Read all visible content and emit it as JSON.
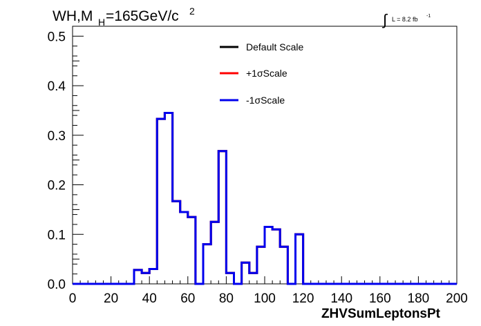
{
  "chart_data": {
    "type": "line",
    "title_main": "WH,M",
    "title_sub": "H",
    "title_value": "=165GeV/c",
    "title_sup": "2",
    "lumi_integral": "∫",
    "lumi_text": "L = 8.2 fb",
    "lumi_sup": "-1",
    "xlabel": "ZHVSumLeptonsPt",
    "ylabel": "",
    "xlim": [
      0,
      200
    ],
    "ylim": [
      0,
      0.52
    ],
    "x_ticks": [
      "0",
      "20",
      "40",
      "60",
      "80",
      "100",
      "120",
      "140",
      "160",
      "180",
      "200"
    ],
    "y_ticks": [
      "0.0",
      "0.1",
      "0.2",
      "0.3",
      "0.4",
      "0.5"
    ],
    "legend_position": "top-center",
    "bin_width": 4,
    "series": [
      {
        "name": "Default Scale",
        "color": "#000000",
        "values": [
          0,
          0,
          0,
          0,
          0,
          0,
          0,
          0,
          0.028,
          0.022,
          0.03,
          0.333,
          0.345,
          0.167,
          0.145,
          0.135,
          0,
          0.08,
          0.125,
          0.268,
          0.022,
          0,
          0.043,
          0.022,
          0.075,
          0.115,
          0.11,
          0.075,
          0,
          0.1,
          0,
          0,
          0,
          0,
          0,
          0,
          0,
          0,
          0,
          0,
          0,
          0,
          0,
          0,
          0,
          0,
          0,
          0,
          0,
          0
        ]
      },
      {
        "name": "+1σScale",
        "color": "#ff0000",
        "values": [
          0,
          0,
          0,
          0,
          0,
          0,
          0,
          0,
          0.028,
          0.022,
          0.03,
          0.333,
          0.345,
          0.167,
          0.145,
          0.135,
          0,
          0.08,
          0.125,
          0.268,
          0.022,
          0,
          0.043,
          0.022,
          0.075,
          0.115,
          0.11,
          0.075,
          0,
          0.1,
          0,
          0,
          0,
          0,
          0,
          0,
          0,
          0,
          0,
          0,
          0,
          0,
          0,
          0,
          0,
          0,
          0,
          0,
          0,
          0
        ]
      },
      {
        "name": "-1σScale",
        "color": "#0000ee",
        "values": [
          0,
          0,
          0,
          0,
          0,
          0,
          0,
          0,
          0.028,
          0.022,
          0.03,
          0.333,
          0.345,
          0.167,
          0.145,
          0.135,
          0,
          0.08,
          0.125,
          0.268,
          0.022,
          0,
          0.043,
          0.022,
          0.075,
          0.115,
          0.11,
          0.075,
          0,
          0.1,
          0,
          0,
          0,
          0,
          0,
          0,
          0,
          0,
          0,
          0,
          0,
          0,
          0,
          0,
          0,
          0,
          0,
          0,
          0,
          0
        ]
      }
    ]
  }
}
